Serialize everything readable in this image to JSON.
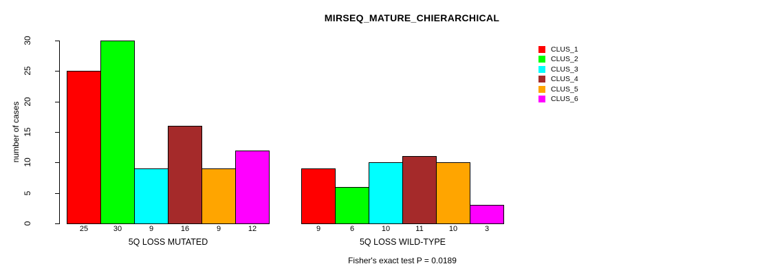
{
  "chart_data": {
    "type": "bar",
    "title": "MIRSEQ_MATURE_CHIERARCHICAL",
    "ylabel": "number of cases",
    "ylim": [
      0,
      30
    ],
    "yticks": [
      0,
      5,
      10,
      15,
      20,
      25,
      30
    ],
    "grid": false,
    "legend_position": "right",
    "series_names": [
      "CLUS_1",
      "CLUS_2",
      "CLUS_3",
      "CLUS_4",
      "CLUS_5",
      "CLUS_6"
    ],
    "colors": [
      "#FF0000",
      "#00FF00",
      "#00FFFF",
      "#A52A2A",
      "#FFA500",
      "#FF00FF"
    ],
    "bar_border_color": "#000000",
    "groups": [
      {
        "label": "5Q LOSS MUTATED",
        "values": [
          25,
          30,
          9,
          16,
          9,
          12
        ]
      },
      {
        "label": "5Q LOSS WILD-TYPE",
        "values": [
          9,
          6,
          10,
          11,
          10,
          3
        ]
      }
    ],
    "annotation": "Fisher's exact test P = 0.0189"
  }
}
